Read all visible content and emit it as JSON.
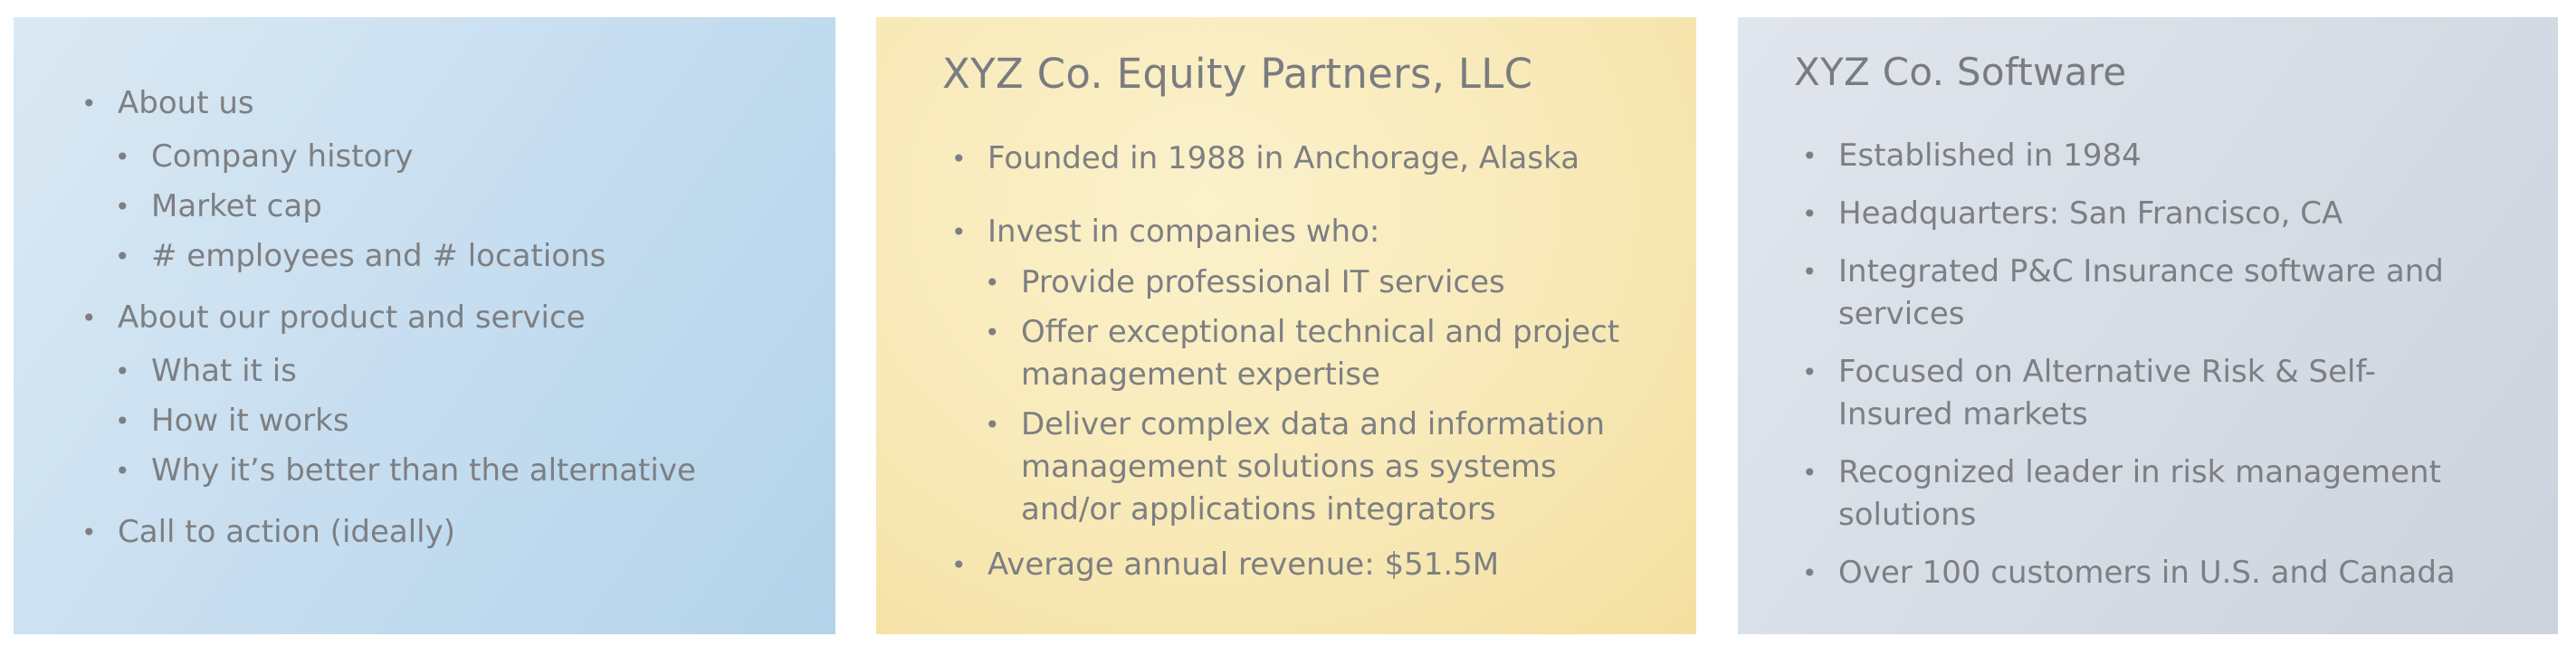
{
  "panels": [
    {
      "title": "",
      "items": [
        {
          "text": "About us",
          "children": [
            "Company history",
            "Market cap",
            "# employees and # locations"
          ]
        },
        {
          "text": "About our product and service",
          "children": [
            "What it is",
            "How it works",
            "Why it’s better than the alternative"
          ]
        },
        {
          "text": "Call to action (ideally)",
          "children": []
        }
      ]
    },
    {
      "title": "XYZ Co. Equity Partners, LLC",
      "items": [
        {
          "text": "Founded in 1988 in Anchorage, Alaska",
          "children": []
        },
        {
          "text": "Invest in companies who:",
          "children": [
            "Provide professional IT services",
            "Offer exceptional technical and project management expertise",
            "Deliver complex data and information management solutions as systems and/or applications integrators"
          ]
        },
        {
          "text": "Average annual revenue: $51.5M",
          "children": []
        }
      ]
    },
    {
      "title": "XYZ Co. Software",
      "items": [
        {
          "text": "Established in 1984",
          "children": []
        },
        {
          "text": "Headquarters: San Francisco, CA",
          "children": []
        },
        {
          "text": "Integrated P&C Insurance software and services",
          "children": []
        },
        {
          "text": "Focused on Alternative Risk & Self-Insured markets",
          "children": []
        },
        {
          "text": "Recognized leader in risk management solutions",
          "children": []
        },
        {
          "text": "Over 100 customers in U.S. and Canada",
          "children": []
        }
      ]
    }
  ],
  "colors": {
    "panel1_bg": "#c7def0",
    "panel2_bg": "#f8e9b7",
    "panel3_bg": "#d4dbe4",
    "text": "#7d7f82"
  },
  "icons": {
    "bullet": "bullet-dot-icon"
  }
}
